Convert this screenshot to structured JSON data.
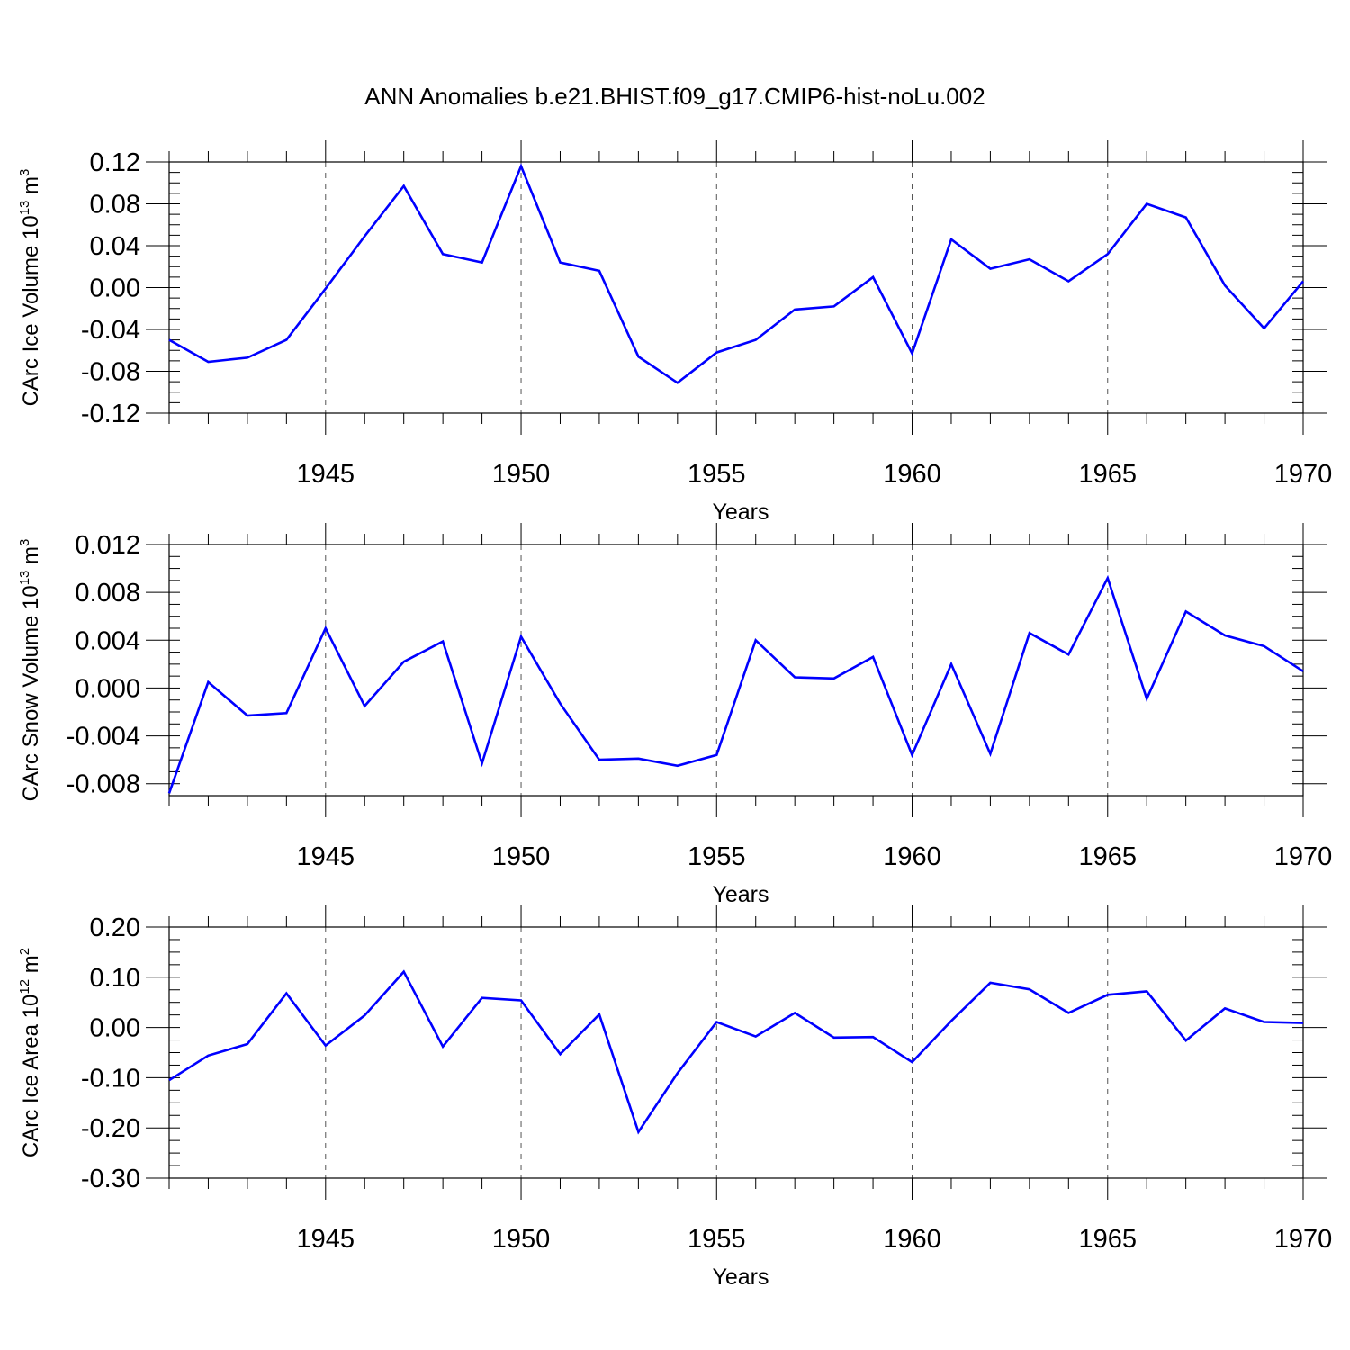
{
  "title": "ANN Anomalies b.e21.BHIST.f09_g17.CMIP6-hist-noLu.002",
  "years": [
    1941,
    1942,
    1943,
    1944,
    1945,
    1946,
    1947,
    1948,
    1949,
    1950,
    1951,
    1952,
    1953,
    1954,
    1955,
    1956,
    1957,
    1958,
    1959,
    1960,
    1961,
    1962,
    1963,
    1964,
    1965,
    1966,
    1967,
    1968,
    1969,
    1970
  ],
  "chart_data": [
    {
      "type": "line",
      "title": "ANN Anomalies b.e21.BHIST.f09_g17.CMIP6-hist-noLu.002",
      "xlabel": "Years",
      "ylabel": {
        "text": "CArc Ice Volume 10",
        "exp": "13",
        "unit": " m",
        "unit_exp": "3"
      },
      "xlim": [
        1941,
        1970
      ],
      "ylim": [
        -0.12,
        0.12
      ],
      "yticks": [
        "0.12",
        "0.08",
        "0.04",
        "0.00",
        "-0.04",
        "-0.08",
        "-0.12"
      ],
      "ytick_values": [
        0.12,
        0.08,
        0.04,
        0.0,
        -0.04,
        -0.08,
        -0.12
      ],
      "xticks": [
        "1945",
        "1950",
        "1955",
        "1960",
        "1965",
        "1970"
      ],
      "xtick_values": [
        1945,
        1950,
        1955,
        1960,
        1965,
        1970
      ],
      "series": [
        {
          "name": "CArc Ice Volume",
          "color": "#0000ff",
          "values": [
            -0.05,
            -0.071,
            -0.067,
            -0.05,
            -0.001,
            0.049,
            0.097,
            0.032,
            0.024,
            0.116,
            0.024,
            0.016,
            -0.066,
            -0.091,
            -0.062,
            -0.05,
            -0.021,
            -0.018,
            0.01,
            -0.063,
            0.046,
            0.018,
            0.027,
            0.006,
            0.032,
            0.08,
            0.067,
            0.002,
            -0.039,
            0.006
          ]
        }
      ]
    },
    {
      "type": "line",
      "xlabel": "Years",
      "ylabel": {
        "text": "CArc Snow Volume 10",
        "exp": "13",
        "unit": " m",
        "unit_exp": "3"
      },
      "xlim": [
        1941,
        1970
      ],
      "ylim": [
        -0.009,
        0.012
      ],
      "yticks": [
        "0.012",
        "0.008",
        "0.004",
        "0.000",
        "-0.004",
        "-0.008"
      ],
      "ytick_values": [
        0.012,
        0.008,
        0.004,
        0.0,
        -0.004,
        -0.008
      ],
      "xticks": [
        "1945",
        "1950",
        "1955",
        "1960",
        "1965",
        "1970"
      ],
      "xtick_values": [
        1945,
        1950,
        1955,
        1960,
        1965,
        1970
      ],
      "series": [
        {
          "name": "CArc Snow Volume",
          "color": "#0000ff",
          "values": [
            -0.0088,
            0.0005,
            -0.0023,
            -0.0021,
            0.005,
            -0.0015,
            0.0022,
            0.0039,
            -0.0063,
            0.0043,
            -0.0013,
            -0.006,
            -0.0059,
            -0.0065,
            -0.0056,
            0.004,
            0.0009,
            0.0008,
            0.0026,
            -0.0056,
            0.002,
            -0.0055,
            0.0046,
            0.0028,
            0.0092,
            -0.0009,
            0.0064,
            0.0044,
            0.0035,
            0.0014
          ]
        }
      ]
    },
    {
      "type": "line",
      "xlabel": "Years",
      "ylabel": {
        "text": "CArc Ice Area 10",
        "exp": "12",
        "unit": " m",
        "unit_exp": "2"
      },
      "xlim": [
        1941,
        1970
      ],
      "ylim": [
        -0.3,
        0.2
      ],
      "yticks": [
        "0.20",
        "0.10",
        "0.00",
        "-0.10",
        "-0.20",
        "-0.30"
      ],
      "ytick_values": [
        0.2,
        0.1,
        0.0,
        -0.1,
        -0.2,
        -0.3
      ],
      "xticks": [
        "1945",
        "1950",
        "1955",
        "1960",
        "1965",
        "1970"
      ],
      "xtick_values": [
        1945,
        1950,
        1955,
        1960,
        1965,
        1970
      ],
      "series": [
        {
          "name": "CArc Ice Area",
          "color": "#0000ff",
          "values": [
            -0.105,
            -0.056,
            -0.033,
            0.068,
            -0.036,
            0.024,
            0.111,
            -0.038,
            0.059,
            0.054,
            -0.053,
            0.026,
            -0.208,
            -0.091,
            0.011,
            -0.018,
            0.029,
            -0.02,
            -0.019,
            -0.069,
            0.013,
            0.089,
            0.076,
            0.029,
            0.065,
            0.072,
            -0.026,
            0.038,
            0.011,
            0.009
          ]
        }
      ]
    }
  ]
}
